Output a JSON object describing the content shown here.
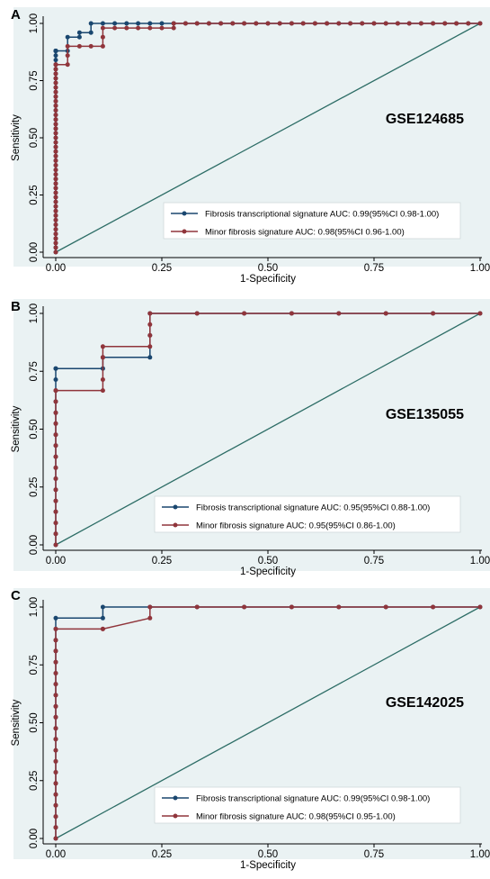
{
  "colors": {
    "background": "#eaf2f3",
    "fibrosis": "#1a476f",
    "minor": "#90353b",
    "reference": "#2d6d66"
  },
  "chart_data": [
    {
      "type": "line",
      "panel": "A",
      "dataset": "GSE124685",
      "xlabel": "1-Specificity",
      "ylabel": "Sensitivity",
      "xlim": [
        0,
        1
      ],
      "ylim": [
        0,
        1
      ],
      "ticks": [
        "0.00",
        "0.25",
        "0.50",
        "0.75",
        "1.00"
      ],
      "legend_position": "bottom-right",
      "series": [
        {
          "name": "Fibrosis transcriptional signature AUC: 0.99(95%CI 0.98-1.00)",
          "color": "#1a476f",
          "x": [
            0.0,
            0.0,
            0.0,
            0.0,
            0.0,
            0.0,
            0.0,
            0.0,
            0.0,
            0.0,
            0.0,
            0.0,
            0.0,
            0.0,
            0.0,
            0.0,
            0.0,
            0.0,
            0.0,
            0.0,
            0.0,
            0.0,
            0.0,
            0.0,
            0.0,
            0.0,
            0.0,
            0.0,
            0.0,
            0.0,
            0.0,
            0.0,
            0.0,
            0.0,
            0.0,
            0.0,
            0.0,
            0.0,
            0.0,
            0.0,
            0.0,
            0.0,
            0.0,
            0.0,
            0.0,
            0.0,
            0.0,
            0.0,
            0.0,
            0.0,
            0.028,
            0.028,
            0.056,
            0.056,
            0.083,
            0.083,
            0.111,
            0.139,
            0.167,
            0.194,
            0.222,
            0.25,
            0.278,
            0.306,
            0.333,
            0.361,
            0.389,
            0.417,
            0.444,
            0.472,
            0.5,
            0.528,
            0.556,
            0.583,
            0.611,
            0.639,
            0.667,
            0.694,
            0.722,
            0.75,
            0.778,
            0.806,
            0.833,
            0.861,
            0.889,
            0.917,
            0.944,
            0.972,
            1.0
          ],
          "y": [
            0.0,
            0.02,
            0.04,
            0.06,
            0.08,
            0.1,
            0.12,
            0.14,
            0.16,
            0.18,
            0.2,
            0.22,
            0.24,
            0.26,
            0.28,
            0.3,
            0.32,
            0.34,
            0.36,
            0.38,
            0.4,
            0.42,
            0.44,
            0.46,
            0.48,
            0.5,
            0.52,
            0.54,
            0.56,
            0.58,
            0.6,
            0.62,
            0.64,
            0.66,
            0.68,
            0.7,
            0.72,
            0.74,
            0.76,
            0.78,
            0.8,
            0.82,
            0.84,
            0.86,
            0.88,
            0.88,
            0.88,
            0.88,
            0.88,
            0.88,
            0.88,
            0.94,
            0.94,
            0.96,
            0.96,
            1.0,
            1.0,
            1.0,
            1.0,
            1.0,
            1.0,
            1.0,
            1.0,
            1.0,
            1.0,
            1.0,
            1.0,
            1.0,
            1.0,
            1.0,
            1.0,
            1.0,
            1.0,
            1.0,
            1.0,
            1.0,
            1.0,
            1.0,
            1.0,
            1.0,
            1.0,
            1.0,
            1.0,
            1.0,
            1.0,
            1.0,
            1.0,
            1.0,
            1.0
          ]
        },
        {
          "name": "Minor fibrosis signature AUC: 0.98(95%CI 0.96-1.00)",
          "color": "#90353b",
          "x": [
            0.0,
            0.0,
            0.0,
            0.0,
            0.0,
            0.0,
            0.0,
            0.0,
            0.0,
            0.0,
            0.0,
            0.0,
            0.0,
            0.0,
            0.0,
            0.0,
            0.0,
            0.0,
            0.0,
            0.0,
            0.0,
            0.0,
            0.0,
            0.0,
            0.0,
            0.0,
            0.0,
            0.0,
            0.0,
            0.0,
            0.0,
            0.0,
            0.0,
            0.0,
            0.0,
            0.0,
            0.0,
            0.0,
            0.0,
            0.0,
            0.0,
            0.0,
            0.0,
            0.028,
            0.028,
            0.028,
            0.056,
            0.083,
            0.111,
            0.111,
            0.111,
            0.139,
            0.167,
            0.194,
            0.222,
            0.25,
            0.278,
            0.278,
            0.306,
            0.333,
            0.361,
            0.389,
            0.417,
            0.444,
            0.472,
            0.5,
            0.528,
            0.556,
            0.583,
            0.611,
            0.639,
            0.667,
            0.694,
            0.722,
            0.75,
            0.778,
            0.806,
            0.833,
            0.861,
            0.889,
            0.917,
            0.944,
            0.972,
            1.0
          ],
          "y": [
            0.0,
            0.02,
            0.04,
            0.06,
            0.08,
            0.1,
            0.12,
            0.14,
            0.16,
            0.18,
            0.2,
            0.22,
            0.24,
            0.26,
            0.28,
            0.3,
            0.32,
            0.34,
            0.36,
            0.38,
            0.4,
            0.42,
            0.44,
            0.46,
            0.48,
            0.5,
            0.52,
            0.54,
            0.56,
            0.58,
            0.6,
            0.62,
            0.64,
            0.66,
            0.68,
            0.7,
            0.72,
            0.74,
            0.76,
            0.78,
            0.8,
            0.82,
            0.82,
            0.82,
            0.86,
            0.9,
            0.9,
            0.9,
            0.9,
            0.94,
            0.98,
            0.98,
            0.98,
            0.98,
            0.98,
            0.98,
            0.98,
            1.0,
            1.0,
            1.0,
            1.0,
            1.0,
            1.0,
            1.0,
            1.0,
            1.0,
            1.0,
            1.0,
            1.0,
            1.0,
            1.0,
            1.0,
            1.0,
            1.0,
            1.0,
            1.0,
            1.0,
            1.0,
            1.0,
            1.0,
            1.0,
            1.0,
            1.0,
            1.0
          ]
        }
      ]
    },
    {
      "type": "line",
      "panel": "B",
      "dataset": "GSE135055",
      "xlabel": "1-Specificity",
      "ylabel": "Sensitivity",
      "xlim": [
        0,
        1
      ],
      "ylim": [
        0,
        1
      ],
      "ticks": [
        "0.00",
        "0.25",
        "0.50",
        "0.75",
        "1.00"
      ],
      "legend_position": "bottom-right",
      "series": [
        {
          "name": "Fibrosis transcriptional signature AUC: 0.95(95%CI 0.88-1.00)",
          "color": "#1a476f",
          "x": [
            0.0,
            0.0,
            0.0,
            0.0,
            0.0,
            0.0,
            0.0,
            0.0,
            0.0,
            0.0,
            0.0,
            0.0,
            0.0,
            0.0,
            0.0,
            0.0,
            0.0,
            0.0,
            0.111,
            0.111,
            0.222,
            0.222,
            0.222,
            0.333,
            0.444,
            0.556,
            0.667,
            0.778,
            0.889,
            1.0
          ],
          "y": [
            0.0,
            0.048,
            0.095,
            0.143,
            0.19,
            0.238,
            0.286,
            0.333,
            0.381,
            0.429,
            0.476,
            0.524,
            0.571,
            0.619,
            0.667,
            0.714,
            0.762,
            0.762,
            0.762,
            0.81,
            0.81,
            0.905,
            1.0,
            1.0,
            1.0,
            1.0,
            1.0,
            1.0,
            1.0,
            1.0
          ]
        },
        {
          "name": "Minor fibrosis signature AUC: 0.95(95%CI 0.86-1.00)",
          "color": "#90353b",
          "x": [
            0.0,
            0.0,
            0.0,
            0.0,
            0.0,
            0.0,
            0.0,
            0.0,
            0.0,
            0.0,
            0.0,
            0.0,
            0.0,
            0.0,
            0.0,
            0.0,
            0.111,
            0.111,
            0.111,
            0.111,
            0.222,
            0.222,
            0.222,
            0.222,
            0.333,
            0.444,
            0.556,
            0.667,
            0.778,
            0.889,
            1.0
          ],
          "y": [
            0.0,
            0.048,
            0.095,
            0.143,
            0.19,
            0.238,
            0.286,
            0.333,
            0.381,
            0.429,
            0.476,
            0.524,
            0.571,
            0.619,
            0.667,
            0.667,
            0.667,
            0.714,
            0.81,
            0.857,
            0.857,
            0.905,
            0.952,
            1.0,
            1.0,
            1.0,
            1.0,
            1.0,
            1.0,
            1.0,
            1.0
          ]
        }
      ]
    },
    {
      "type": "line",
      "panel": "C",
      "dataset": "GSE142025",
      "xlabel": "1-Specificity",
      "ylabel": "Sensitivity",
      "xlim": [
        0,
        1
      ],
      "ylim": [
        0,
        1
      ],
      "ticks": [
        "0.00",
        "0.25",
        "0.50",
        "0.75",
        "1.00"
      ],
      "legend_position": "bottom-right",
      "series": [
        {
          "name": "Fibrosis transcriptional signature AUC: 0.99(95%CI 0.98-1.00)",
          "color": "#1a476f",
          "x": [
            0.0,
            0.0,
            0.0,
            0.0,
            0.0,
            0.0,
            0.0,
            0.0,
            0.0,
            0.0,
            0.0,
            0.0,
            0.0,
            0.0,
            0.0,
            0.0,
            0.0,
            0.0,
            0.0,
            0.0,
            0.0,
            0.111,
            0.111,
            0.222,
            0.333,
            0.444,
            0.556,
            0.667,
            0.778,
            0.889,
            1.0
          ],
          "y": [
            0.0,
            0.048,
            0.095,
            0.143,
            0.19,
            0.238,
            0.286,
            0.333,
            0.381,
            0.429,
            0.476,
            0.524,
            0.571,
            0.619,
            0.667,
            0.714,
            0.762,
            0.81,
            0.857,
            0.905,
            0.952,
            0.952,
            1.0,
            1.0,
            1.0,
            1.0,
            1.0,
            1.0,
            1.0,
            1.0,
            1.0
          ]
        },
        {
          "name": "Minor fibrosis signature AUC: 0.98(95%CI 0.95-1.00)",
          "color": "#90353b",
          "x": [
            0.0,
            0.0,
            0.0,
            0.0,
            0.0,
            0.0,
            0.0,
            0.0,
            0.0,
            0.0,
            0.0,
            0.0,
            0.0,
            0.0,
            0.0,
            0.0,
            0.0,
            0.0,
            0.0,
            0.0,
            0.111,
            0.111,
            0.222,
            0.222,
            0.333,
            0.444,
            0.556,
            0.667,
            0.778,
            0.889,
            1.0
          ],
          "y": [
            0.0,
            0.048,
            0.095,
            0.143,
            0.19,
            0.238,
            0.286,
            0.333,
            0.381,
            0.429,
            0.476,
            0.524,
            0.571,
            0.619,
            0.667,
            0.714,
            0.762,
            0.81,
            0.857,
            0.905,
            0.905,
            0.905,
            0.952,
            1.0,
            1.0,
            1.0,
            1.0,
            1.0,
            1.0,
            1.0,
            1.0
          ]
        }
      ]
    }
  ]
}
